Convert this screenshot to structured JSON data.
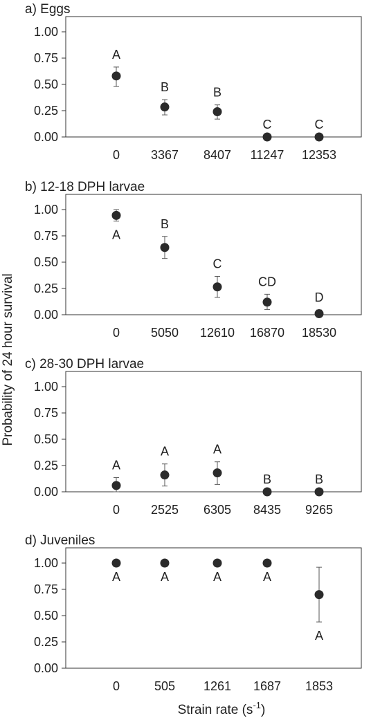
{
  "ylabel": "Probability of 24 hour survival",
  "xlabel": "Strain rate (s",
  "xlabel_sup": "-1",
  "xlabel_close": ")",
  "chart_data": [
    {
      "type": "scatter",
      "title": "a) Eggs",
      "categories": [
        "0",
        "3367",
        "8407",
        "11247",
        "12353"
      ],
      "values": [
        0.58,
        0.285,
        0.24,
        0.0,
        0.0
      ],
      "err_low": [
        0.48,
        0.21,
        0.17,
        0.0,
        0.0
      ],
      "err_high": [
        0.665,
        0.355,
        0.305,
        0.0,
        0.0
      ],
      "letters": [
        "A",
        "B",
        "B",
        "C",
        "C"
      ],
      "letter_pos": [
        "above",
        "above",
        "above",
        "above",
        "above"
      ],
      "ylim": [
        0,
        1.0
      ],
      "yticks": [
        "0.00",
        "0.25",
        "0.50",
        "0.75",
        "1.00"
      ]
    },
    {
      "type": "scatter",
      "title": "b) 12-18 DPH larvae",
      "categories": [
        "0",
        "5050",
        "12610",
        "16870",
        "18530"
      ],
      "values": [
        0.945,
        0.64,
        0.265,
        0.12,
        0.01
      ],
      "err_low": [
        0.89,
        0.535,
        0.165,
        0.05,
        0.0
      ],
      "err_high": [
        1.0,
        0.745,
        0.365,
        0.195,
        0.045
      ],
      "letters": [
        "A",
        "B",
        "C",
        "CD",
        "D"
      ],
      "letter_pos": [
        "below",
        "above",
        "above",
        "above",
        "above"
      ],
      "ylim": [
        0,
        1.0
      ],
      "yticks": [
        "0.00",
        "0.25",
        "0.50",
        "0.75",
        "1.00"
      ]
    },
    {
      "type": "scatter",
      "title": "c) 28-30 DPH larvae",
      "categories": [
        "0",
        "2525",
        "6305",
        "8435",
        "9265"
      ],
      "values": [
        0.06,
        0.16,
        0.18,
        0.0,
        0.0
      ],
      "err_low": [
        0.0,
        0.055,
        0.07,
        0.0,
        0.0
      ],
      "err_high": [
        0.135,
        0.265,
        0.285,
        0.0,
        0.0
      ],
      "letters": [
        "A",
        "A",
        "A",
        "B",
        "B"
      ],
      "letter_pos": [
        "above",
        "above",
        "above",
        "above",
        "above"
      ],
      "ylim": [
        0,
        1.0
      ],
      "yticks": [
        "0.00",
        "0.25",
        "0.50",
        "0.75",
        "1.00"
      ]
    },
    {
      "type": "scatter",
      "title": "d) Juveniles",
      "categories": [
        "0",
        "505",
        "1261",
        "1687",
        "1853"
      ],
      "values": [
        1.0,
        1.0,
        1.0,
        1.0,
        0.7
      ],
      "err_low": [
        1.0,
        1.0,
        1.0,
        1.0,
        0.44
      ],
      "err_high": [
        1.0,
        1.0,
        1.0,
        1.0,
        0.96
      ],
      "letters": [
        "A",
        "A",
        "A",
        "A",
        "A"
      ],
      "letter_pos": [
        "below",
        "below",
        "below",
        "below",
        "below"
      ],
      "ylim": [
        0,
        1.0
      ],
      "yticks": [
        "0.00",
        "0.25",
        "0.50",
        "0.75",
        "1.00"
      ]
    }
  ]
}
